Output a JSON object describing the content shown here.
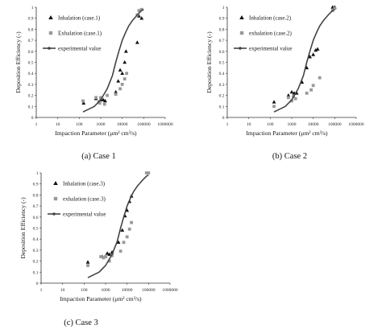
{
  "chart_data": [
    {
      "type": "scatter",
      "caption": "(a) Case 1",
      "xlabel": "Impaction Parameter (μm² cm³/s)",
      "ylabel": "Deposition Efficiency (-)",
      "xscale": "log",
      "xlim": [
        1,
        1000000
      ],
      "ylim": [
        0,
        1
      ],
      "xticks": [
        "1",
        "10",
        "100",
        "1000",
        "10000",
        "100000",
        "1000000"
      ],
      "yticks": [
        "0",
        "0.1",
        "0.2",
        "0.3",
        "0.4",
        "0.5",
        "0.6",
        "0.7",
        "0.8",
        "0.9",
        "1"
      ],
      "legend_position": "top-left",
      "grid": false,
      "series": [
        {
          "name": "Inhalation (case.1)",
          "marker": "triangle",
          "color": "#111111",
          "points": [
            [
              160,
              0.13
            ],
            [
              600,
              0.17
            ],
            [
              800,
              0.14
            ],
            [
              1000,
              0.16
            ],
            [
              1300,
              0.16
            ],
            [
              1600,
              0.15
            ],
            [
              5000,
              0.23
            ],
            [
              6500,
              0.33
            ],
            [
              8000,
              0.43
            ],
            [
              10000,
              0.4
            ],
            [
              13000,
              0.5
            ],
            [
              15000,
              0.6
            ],
            [
              50000,
              0.68
            ],
            [
              60000,
              0.92
            ],
            [
              80000,
              0.9
            ]
          ]
        },
        {
          "name": "Exhalation (case.1)",
          "marker": "square",
          "color": "#999999",
          "points": [
            [
              150,
              0.15
            ],
            [
              600,
              0.18
            ],
            [
              900,
              0.13
            ],
            [
              1000,
              0.18
            ],
            [
              1500,
              0.12
            ],
            [
              2000,
              0.2
            ],
            [
              5000,
              0.21
            ],
            [
              8000,
              0.26
            ],
            [
              10000,
              0.3
            ],
            [
              13000,
              0.35
            ],
            [
              16000,
              0.4
            ],
            [
              50000,
              0.93
            ],
            [
              60000,
              0.97
            ],
            [
              80000,
              0.98
            ]
          ]
        },
        {
          "name": "experimental value",
          "marker": "line",
          "color": "#444444",
          "points": [
            [
              150,
              0.05
            ],
            [
              500,
              0.1
            ],
            [
              1000,
              0.16
            ],
            [
              2000,
              0.26
            ],
            [
              3500,
              0.38
            ],
            [
              5000,
              0.5
            ],
            [
              7000,
              0.6
            ],
            [
              10000,
              0.7
            ],
            [
              15000,
              0.78
            ],
            [
              20000,
              0.83
            ],
            [
              30000,
              0.88
            ],
            [
              50000,
              0.93
            ],
            [
              80000,
              0.97
            ],
            [
              100000,
              0.98
            ]
          ]
        }
      ]
    },
    {
      "type": "scatter",
      "caption": "(b) Case 2",
      "xlabel": "Impaction Parameter (μm² cm³/s)",
      "ylabel": "Deposition Efficiency (-)",
      "xscale": "log",
      "xlim": [
        1,
        1000000
      ],
      "ylim": [
        0,
        1
      ],
      "xticks": [
        "1",
        "10",
        "100",
        "1000",
        "10000",
        "100000",
        "1000000"
      ],
      "yticks": [
        "0",
        "0.1",
        "0.2",
        "0.3",
        "0.4",
        "0.5",
        "0.6",
        "0.7",
        "0.8",
        "0.9",
        "1"
      ],
      "legend_position": "top-left",
      "grid": false,
      "series": [
        {
          "name": "Inhalation (case.2)",
          "marker": "triangle",
          "color": "#111111",
          "points": [
            [
              150,
              0.14
            ],
            [
              700,
              0.2
            ],
            [
              1000,
              0.23
            ],
            [
              1300,
              0.22
            ],
            [
              1700,
              0.22
            ],
            [
              3000,
              0.32
            ],
            [
              5000,
              0.45
            ],
            [
              7000,
              0.55
            ],
            [
              10000,
              0.57
            ],
            [
              13000,
              0.61
            ],
            [
              16000,
              0.62
            ],
            [
              80000,
              1.0
            ],
            [
              100000,
              1.0
            ]
          ]
        },
        {
          "name": "exhalation (case.2)",
          "marker": "square",
          "color": "#999999",
          "points": [
            [
              150,
              0.1
            ],
            [
              700,
              0.18
            ],
            [
              1000,
              0.15
            ],
            [
              1200,
              0.19
            ],
            [
              1500,
              0.17
            ],
            [
              5000,
              0.22
            ],
            [
              8000,
              0.25
            ],
            [
              10000,
              0.29
            ],
            [
              20000,
              0.36
            ],
            [
              80000,
              0.97
            ],
            [
              100000,
              0.99
            ]
          ]
        },
        {
          "name": "experimental value",
          "marker": "line",
          "color": "#444444",
          "points": [
            [
              150,
              0.05
            ],
            [
              500,
              0.1
            ],
            [
              1000,
              0.16
            ],
            [
              2000,
              0.26
            ],
            [
              3500,
              0.38
            ],
            [
              5000,
              0.5
            ],
            [
              7000,
              0.6
            ],
            [
              10000,
              0.7
            ],
            [
              15000,
              0.78
            ],
            [
              20000,
              0.83
            ],
            [
              30000,
              0.88
            ],
            [
              50000,
              0.93
            ],
            [
              80000,
              0.97
            ],
            [
              100000,
              0.98
            ]
          ]
        }
      ]
    },
    {
      "type": "scatter",
      "caption": "(c) Case 3",
      "xlabel": "Impaction Parameter (μm² cm³/s)",
      "ylabel": "Deposition Efficiency (-)",
      "xscale": "log",
      "xlim": [
        1,
        1000000
      ],
      "ylim": [
        0,
        1
      ],
      "xticks": [
        "1",
        "10",
        "100",
        "1000",
        "10000",
        "100000",
        "1000000"
      ],
      "yticks": [
        "0",
        "0.1",
        "0.2",
        "0.3",
        "0.4",
        "0.5",
        "0.6",
        "0.7",
        "0.8",
        "0.9",
        "1"
      ],
      "legend_position": "top-left",
      "grid": false,
      "series": [
        {
          "name": "Inhalation (case.3)",
          "marker": "triangle",
          "color": "#111111",
          "points": [
            [
              150,
              0.19
            ],
            [
              700,
              0.24
            ],
            [
              1000,
              0.24
            ],
            [
              1200,
              0.27
            ],
            [
              1500,
              0.26
            ],
            [
              2000,
              0.28
            ],
            [
              4000,
              0.37
            ],
            [
              6000,
              0.48
            ],
            [
              8000,
              0.61
            ],
            [
              10000,
              0.66
            ],
            [
              13000,
              0.74
            ],
            [
              16000,
              0.79
            ]
          ]
        },
        {
          "name": "exhalation (case.3)",
          "marker": "square",
          "color": "#999999",
          "points": [
            [
              150,
              0.16
            ],
            [
              600,
              0.24
            ],
            [
              800,
              0.23
            ],
            [
              1000,
              0.24
            ],
            [
              1500,
              0.2
            ],
            [
              2000,
              0.25
            ],
            [
              5000,
              0.29
            ],
            [
              7000,
              0.37
            ],
            [
              10000,
              0.42
            ],
            [
              13000,
              0.49
            ],
            [
              16000,
              0.55
            ],
            [
              80000,
              1.0
            ],
            [
              100000,
              1.0
            ]
          ]
        },
        {
          "name": "experimental value",
          "marker": "line",
          "color": "#444444",
          "points": [
            [
              150,
              0.05
            ],
            [
              500,
              0.1
            ],
            [
              1000,
              0.16
            ],
            [
              2000,
              0.26
            ],
            [
              3500,
              0.38
            ],
            [
              5000,
              0.5
            ],
            [
              7000,
              0.6
            ],
            [
              10000,
              0.7
            ],
            [
              15000,
              0.78
            ],
            [
              20000,
              0.83
            ],
            [
              30000,
              0.88
            ],
            [
              50000,
              0.93
            ],
            [
              80000,
              0.97
            ],
            [
              100000,
              0.98
            ]
          ]
        }
      ]
    }
  ]
}
